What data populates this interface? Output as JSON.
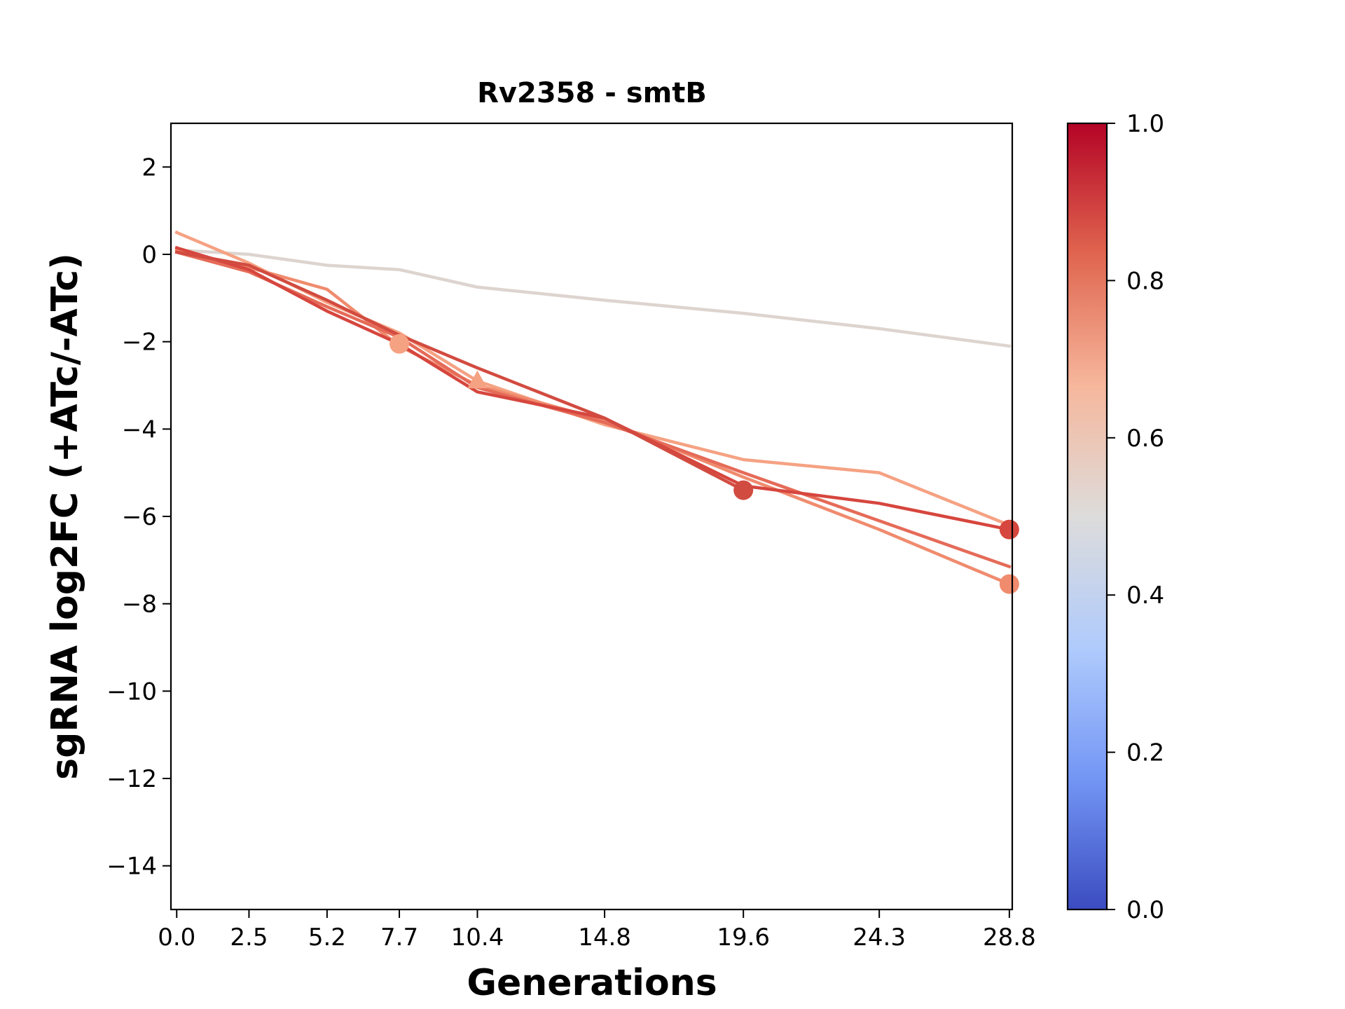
{
  "chart_data": {
    "type": "line",
    "title": "Rv2358 - smtB",
    "xlabel": "Generations",
    "ylabel": "sgRNA log2FC (+ATc/-ATc)",
    "x_ticks": [
      0.0,
      2.5,
      5.2,
      7.7,
      10.4,
      14.8,
      19.6,
      24.3,
      28.8
    ],
    "x_tick_labels": [
      "0.0",
      "2.5",
      "5.2",
      "7.7",
      "10.4",
      "14.8",
      "19.6",
      "24.3",
      "28.8"
    ],
    "y_ticks": [
      2,
      0,
      -2,
      -4,
      -6,
      -8,
      -10,
      -12,
      -14
    ],
    "y_tick_labels": [
      "2",
      "0",
      "−2",
      "−4",
      "−6",
      "−8",
      "−10",
      "−12",
      "−14"
    ],
    "xlim": [
      -0.2,
      28.9
    ],
    "ylim": [
      -15,
      3
    ],
    "grid": false,
    "legend": "none",
    "series": [
      {
        "color": "#ddd4cf",
        "points": [
          [
            0,
            0.1
          ],
          [
            2.5,
            0.0
          ],
          [
            5.2,
            -0.25
          ],
          [
            7.7,
            -0.35
          ],
          [
            10.4,
            -0.75
          ],
          [
            14.8,
            -1.05
          ],
          [
            19.6,
            -1.35
          ],
          [
            24.3,
            -1.7
          ],
          [
            28.8,
            -2.1
          ]
        ],
        "marker": null
      },
      {
        "color": "#f5a283",
        "points": [
          [
            0,
            0.5
          ],
          [
            2.5,
            -0.2
          ],
          [
            5.2,
            -1.1
          ],
          [
            7.7,
            -1.8
          ],
          [
            10.4,
            -2.9
          ],
          [
            14.8,
            -3.9
          ],
          [
            19.6,
            -4.7
          ],
          [
            24.3,
            -5.0
          ],
          [
            28.8,
            -6.2
          ]
        ],
        "marker": {
          "shape": "triangle",
          "at": [
            10.4,
            -2.9
          ]
        }
      },
      {
        "color": "#f08b6e",
        "points": [
          [
            0,
            0.1
          ],
          [
            2.5,
            -0.3
          ],
          [
            5.2,
            -0.8
          ],
          [
            7.7,
            -2.1
          ],
          [
            10.4,
            -3.0
          ],
          [
            14.8,
            -3.8
          ],
          [
            19.6,
            -5.1
          ],
          [
            24.3,
            -6.3
          ],
          [
            28.8,
            -7.55
          ]
        ],
        "marker": {
          "shape": "circle",
          "at": [
            28.8,
            -7.55
          ]
        }
      },
      {
        "color": "#f5a283",
        "points": [
          [
            7.7,
            -2.05
          ]
        ],
        "marker": {
          "shape": "circle",
          "at": [
            7.7,
            -2.05
          ]
        }
      },
      {
        "color": "#e56b58",
        "points": [
          [
            0,
            0.05
          ],
          [
            2.5,
            -0.4
          ],
          [
            5.2,
            -1.2
          ],
          [
            7.7,
            -1.9
          ],
          [
            10.4,
            -3.05
          ],
          [
            14.8,
            -3.85
          ],
          [
            19.6,
            -5.0
          ],
          [
            24.3,
            -6.1
          ],
          [
            28.8,
            -7.15
          ]
        ],
        "marker": null
      },
      {
        "color": "#d6463e",
        "points": [
          [
            0,
            0.15
          ],
          [
            2.5,
            -0.35
          ],
          [
            5.2,
            -1.3
          ],
          [
            7.7,
            -2.05
          ],
          [
            10.4,
            -3.15
          ],
          [
            14.8,
            -3.75
          ],
          [
            19.6,
            -5.3
          ],
          [
            24.3,
            -5.7
          ],
          [
            28.8,
            -6.3
          ]
        ],
        "marker": {
          "shape": "circle",
          "at": [
            28.8,
            -6.3
          ]
        }
      },
      {
        "color": "#d24b40",
        "points": [
          [
            0,
            0.05
          ],
          [
            2.5,
            -0.25
          ],
          [
            5.2,
            -1.05
          ],
          [
            7.7,
            -1.85
          ],
          [
            10.4,
            -2.6
          ],
          [
            14.8,
            -3.75
          ],
          [
            19.6,
            -5.4
          ]
        ],
        "marker": {
          "shape": "circle",
          "at": [
            19.6,
            -5.4
          ]
        }
      }
    ],
    "colorbar": {
      "min": 0.0,
      "max": 1.0,
      "ticks": [
        0.0,
        0.2,
        0.4,
        0.6,
        0.8,
        1.0
      ],
      "tick_labels": [
        "0.0",
        "0.2",
        "0.4",
        "0.6",
        "0.8",
        "1.0"
      ],
      "colormap": "coolwarm",
      "stops": [
        "#3b4cc0",
        "#7396f5",
        "#b0cbfc",
        "#dddcdb",
        "#f6b79c",
        "#e0654f",
        "#b40426"
      ]
    }
  }
}
